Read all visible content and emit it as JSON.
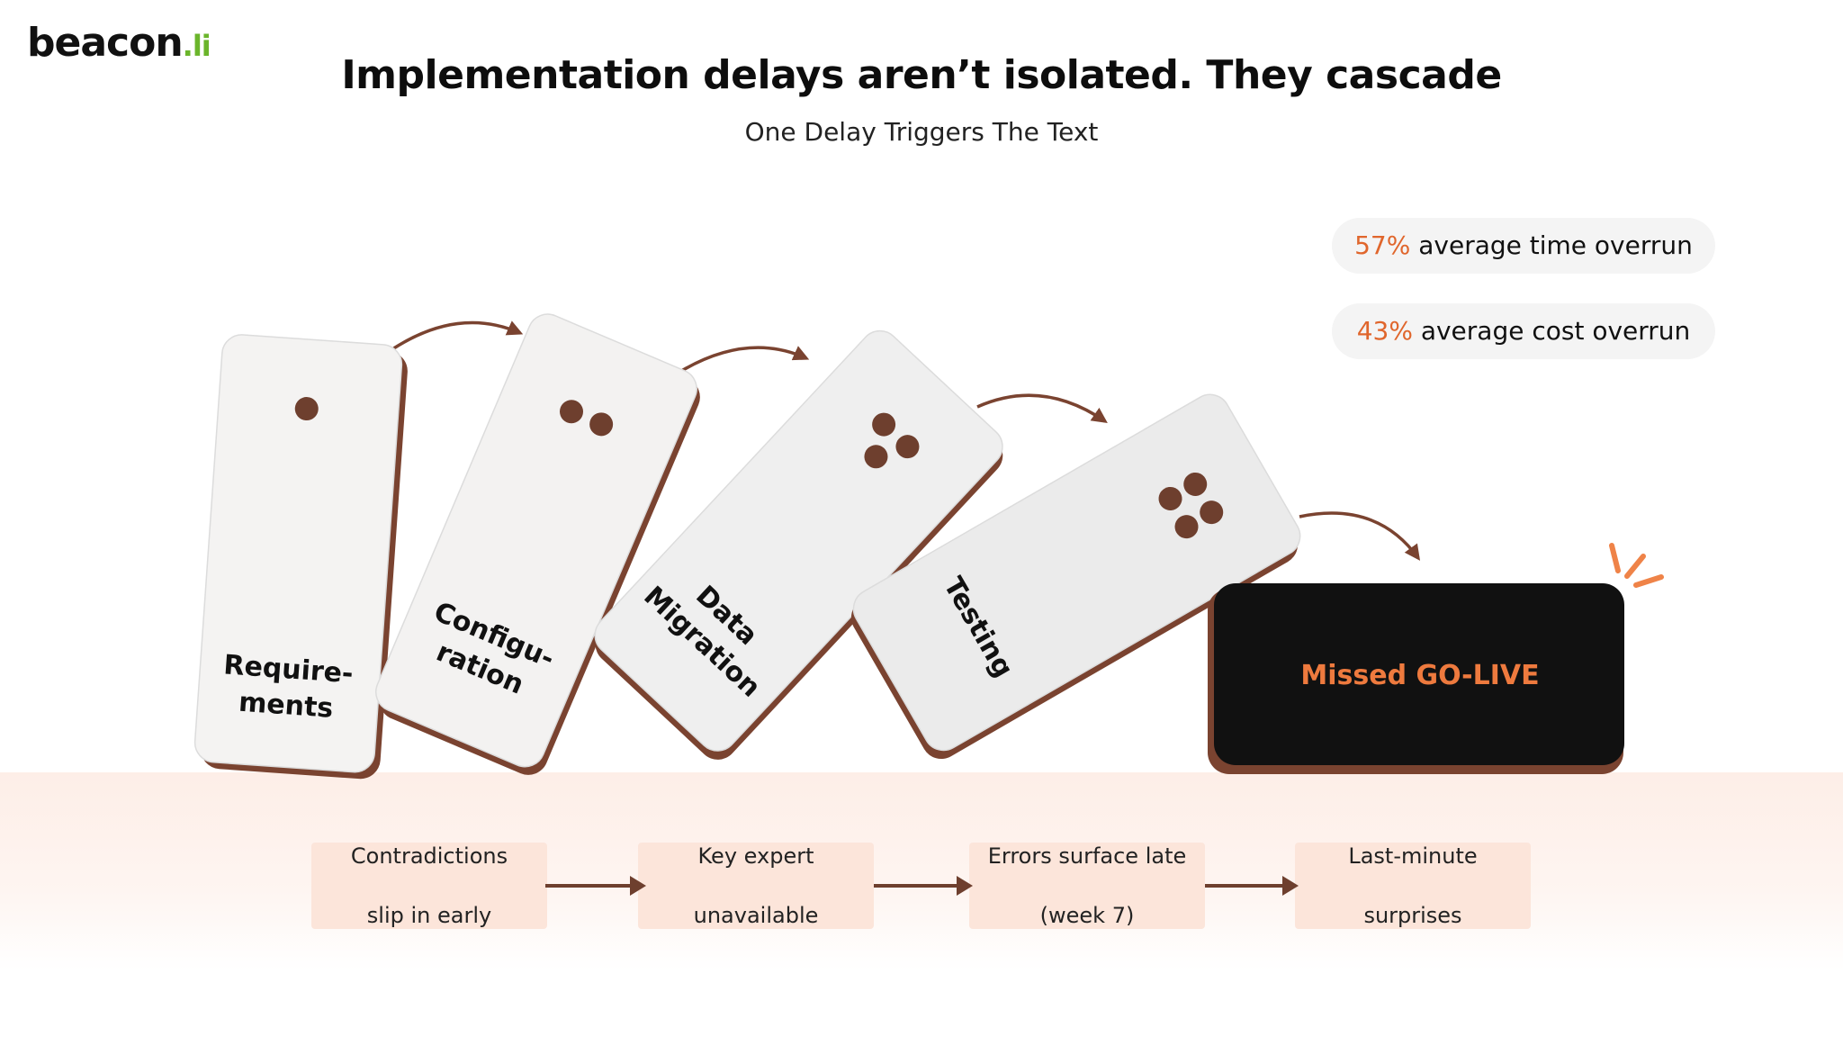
{
  "logo": {
    "main": "beacon",
    "suffix": ".li"
  },
  "header": {
    "title": "Implementation delays aren’t isolated. They cascade",
    "subtitle": "One Delay Triggers The Text"
  },
  "stats": [
    {
      "value": "57%",
      "label": " average time overrun"
    },
    {
      "value": "43%",
      "label": " average cost overrun"
    }
  ],
  "dominoes": [
    {
      "line1": "Require-",
      "line2": "ments",
      "dots": 1
    },
    {
      "line1": "Configu-",
      "line2": "ration",
      "dots": 2
    },
    {
      "line1": "Data",
      "line2": "Migration",
      "dots": 3
    },
    {
      "line1": "Testing",
      "line2": "",
      "dots": 4
    }
  ],
  "golive": {
    "label": "Missed GO-LIVE"
  },
  "steps": [
    {
      "line1": "Contradictions",
      "line2": "slip in early"
    },
    {
      "line1": "Key expert",
      "line2": "unavailable"
    },
    {
      "line1": "Errors surface late",
      "line2": "(week 7)"
    },
    {
      "line1": "Last-minute",
      "line2": "surprises"
    }
  ],
  "colors": {
    "brown": "#7a4330",
    "dot": "#6e3f2e",
    "card": "#f4f3f2",
    "accent": "#e0662c",
    "logo_green": "#6bb52b",
    "step_bg": "#fce5da"
  }
}
